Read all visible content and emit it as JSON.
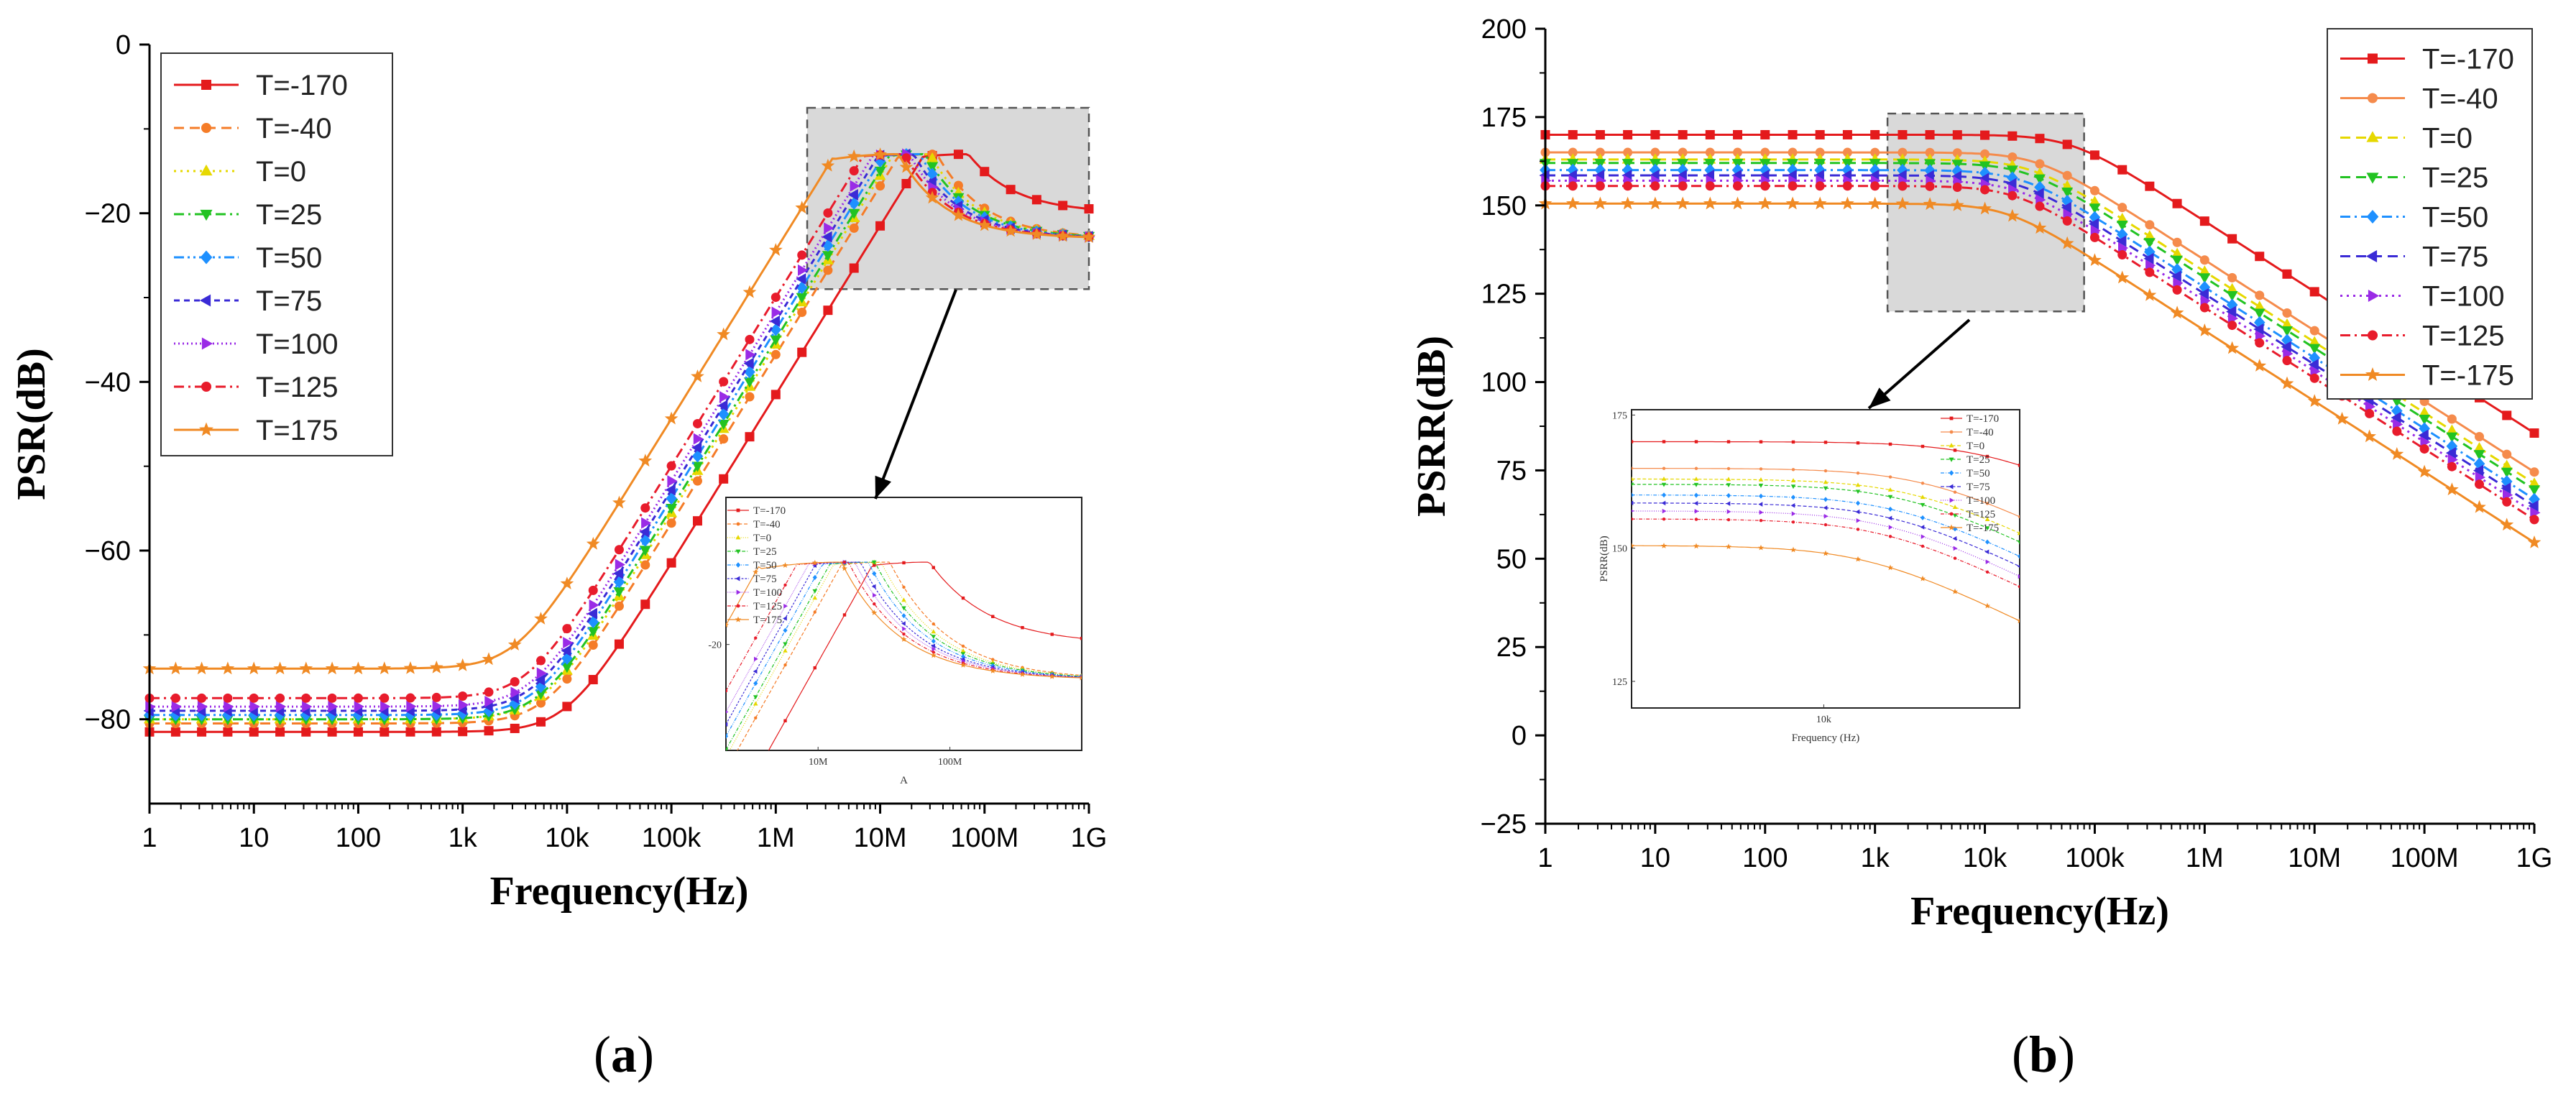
{
  "chart_data": [
    {
      "type": "line",
      "panel_label": "a",
      "xlabel": "Frequency(Hz)",
      "ylabel": "PSR(dB)",
      "x_scale": "log",
      "xlim": [
        1,
        1000000000
      ],
      "ylim": [
        -90,
        0
      ],
      "x_ticks": [
        1,
        10,
        100,
        1000,
        10000,
        100000,
        1000000,
        10000000,
        100000000,
        1000000000
      ],
      "x_tick_labels": [
        "1",
        "10",
        "100",
        "1k",
        "10k",
        "100k",
        "1M",
        "10M",
        "100M",
        "1G"
      ],
      "y_ticks": [
        0,
        -20,
        -40,
        -60,
        -80
      ],
      "y_tick_labels": [
        "0",
        "−20",
        "−40",
        "−60",
        "−80"
      ],
      "legend_position": "top-left",
      "x": [
        1,
        1.78,
        3.16,
        5.62,
        10,
        17.8,
        31.6,
        56.2,
        100,
        178,
        316,
        562,
        1000,
        1780,
        3160,
        5620,
        10000,
        17800,
        31600,
        56200,
        100000,
        178000,
        316000,
        562000,
        1000000,
        1780000,
        3160000,
        5620000,
        10000000,
        17800000,
        31600000,
        56200000,
        100000000,
        178000000,
        316000000,
        562000000,
        1000000000
      ],
      "series": [
        {
          "name": "T=-170",
          "color": "#e41a1c",
          "marker": "square",
          "dash": "solid",
          "low": -81.5,
          "f_corner": 10000,
          "peak": -13,
          "f_peak": 70000000,
          "high": -20
        },
        {
          "name": "T=-40",
          "color": "#f57c28",
          "marker": "circle",
          "dash": "dashed",
          "low": -80.5,
          "f_corner": 6500,
          "peak": -13,
          "f_peak": 35000000,
          "high": -23
        },
        {
          "name": "T=0",
          "color": "#e6d800",
          "marker": "triangle-up",
          "dash": "dotted",
          "low": -80,
          "f_corner": 6000,
          "peak": -13,
          "f_peak": 30000000,
          "high": -23
        },
        {
          "name": "T=25",
          "color": "#22c322",
          "marker": "triangle-down",
          "dash": "dashdot",
          "low": -80,
          "f_corner": 5600,
          "peak": -13,
          "f_peak": 27000000,
          "high": -23
        },
        {
          "name": "T=50",
          "color": "#1e90ff",
          "marker": "diamond",
          "dash": "dashdotdot",
          "low": -79.5,
          "f_corner": 5200,
          "peak": -13,
          "f_peak": 24000000,
          "high": -23
        },
        {
          "name": "T=75",
          "color": "#3a2bd6",
          "marker": "triangle-left",
          "dash": "shortdash",
          "low": -79,
          "f_corner": 4900,
          "peak": -13,
          "f_peak": 21000000,
          "high": -23
        },
        {
          "name": "T=100",
          "color": "#9a2be6",
          "marker": "triangle-right",
          "dash": "shortdot",
          "low": -78.5,
          "f_corner": 4600,
          "peak": -13,
          "f_peak": 19000000,
          "high": -23
        },
        {
          "name": "T=125",
          "color": "#e81c2c",
          "marker": "circle",
          "dash": "dashdot",
          "low": -77.5,
          "f_corner": 4200,
          "peak": -13,
          "f_peak": 17000000,
          "high": -23
        },
        {
          "name": "T=175",
          "color": "#f08a24",
          "marker": "star",
          "dash": "solid",
          "low": -74,
          "f_corner": 3300,
          "peak": -13,
          "f_peak": 15000000,
          "high": -23
        }
      ],
      "zoom_region_x": [
        2000000,
        1000000000
      ],
      "zoom_region_y": [
        -29,
        -7.5
      ],
      "inset": {
        "legend": [
          "T=-170",
          "T=-40",
          "T=0",
          "T=25",
          "T=50",
          "T=75",
          "T=100",
          "T=125",
          "T=175"
        ],
        "x_tick_labels": [
          "10M",
          "100M"
        ],
        "y_tick_labels": [
          "-20"
        ],
        "xlabel": "A"
      }
    },
    {
      "type": "line",
      "panel_label": "b",
      "xlabel": "Frequency(Hz)",
      "ylabel": "PSRR(dB)",
      "x_scale": "log",
      "xlim": [
        1,
        1000000000
      ],
      "ylim": [
        -25,
        200
      ],
      "x_ticks": [
        1,
        10,
        100,
        1000,
        10000,
        100000,
        1000000,
        10000000,
        100000000,
        1000000000
      ],
      "x_tick_labels": [
        "1",
        "10",
        "100",
        "1k",
        "10k",
        "100k",
        "1M",
        "10M",
        "100M",
        "1G"
      ],
      "y_ticks": [
        200,
        175,
        150,
        125,
        100,
        75,
        50,
        25,
        0,
        -25
      ],
      "y_tick_labels": [
        "200",
        "175",
        "150",
        "125",
        "100",
        "75",
        "50",
        "25",
        "0",
        "−25"
      ],
      "legend_position": "top-right",
      "x": [
        1,
        1.78,
        3.16,
        5.62,
        10,
        17.8,
        31.6,
        56.2,
        100,
        178,
        316,
        562,
        1000,
        1780,
        3160,
        5620,
        10000,
        17800,
        31600,
        56200,
        100000,
        178000,
        316000,
        562000,
        1000000,
        1780000,
        3160000,
        5620000,
        10000000,
        17800000,
        31600000,
        56200000,
        100000000,
        178000000,
        316000000,
        562000000,
        1000000000
      ],
      "series": [
        {
          "name": "T=-170",
          "color": "#e41a1c",
          "marker": "square",
          "dash": "solid",
          "dc": 170,
          "f_corner": 60000,
          "floor": 7
        },
        {
          "name": "T=-40",
          "color": "#f58b4c",
          "marker": "circle",
          "dash": "solid",
          "dc": 165,
          "f_corner": 30000,
          "floor": 3
        },
        {
          "name": "T=0",
          "color": "#e6d800",
          "marker": "triangle-up",
          "dash": "dashed",
          "dc": 163,
          "f_corner": 26000,
          "floor": 0
        },
        {
          "name": "T=25",
          "color": "#22c322",
          "marker": "triangle-down",
          "dash": "dashed",
          "dc": 162,
          "f_corner": 24000,
          "floor": -1
        },
        {
          "name": "T=50",
          "color": "#1e90ff",
          "marker": "diamond",
          "dash": "dashdot",
          "dc": 160,
          "f_corner": 22000,
          "floor": -2
        },
        {
          "name": "T=75",
          "color": "#3a2bd6",
          "marker": "triangle-left",
          "dash": "dashed",
          "dc": 158.5,
          "f_corner": 21000,
          "floor": -3
        },
        {
          "name": "T=100",
          "color": "#9a2be6",
          "marker": "triangle-right",
          "dash": "dotted",
          "dc": 157,
          "f_corner": 20000,
          "floor": -3.5
        },
        {
          "name": "T=125",
          "color": "#e81c2c",
          "marker": "circle",
          "dash": "dashdot",
          "dc": 155.5,
          "f_corner": 19000,
          "floor": -4
        },
        {
          "name": "T=-175",
          "color": "#f08a24",
          "marker": "star",
          "dash": "solid",
          "dc": 150.5,
          "f_corner": 16000,
          "floor": -5
        }
      ],
      "zoom_region_x": [
        1300,
        80000
      ],
      "zoom_region_y": [
        120,
        176
      ],
      "inset": {
        "legend": [
          "T=-170",
          "T=-40",
          "T=0",
          "T=25",
          "T=50",
          "T=75",
          "T=100",
          "T=125",
          "T=-175"
        ],
        "x_tick_labels": [
          "10k"
        ],
        "y_tick_labels": [
          "175",
          "150",
          "125"
        ],
        "xlabel": "Frequency (Hz)",
        "ylabel": "PSRR(dB)"
      }
    }
  ]
}
